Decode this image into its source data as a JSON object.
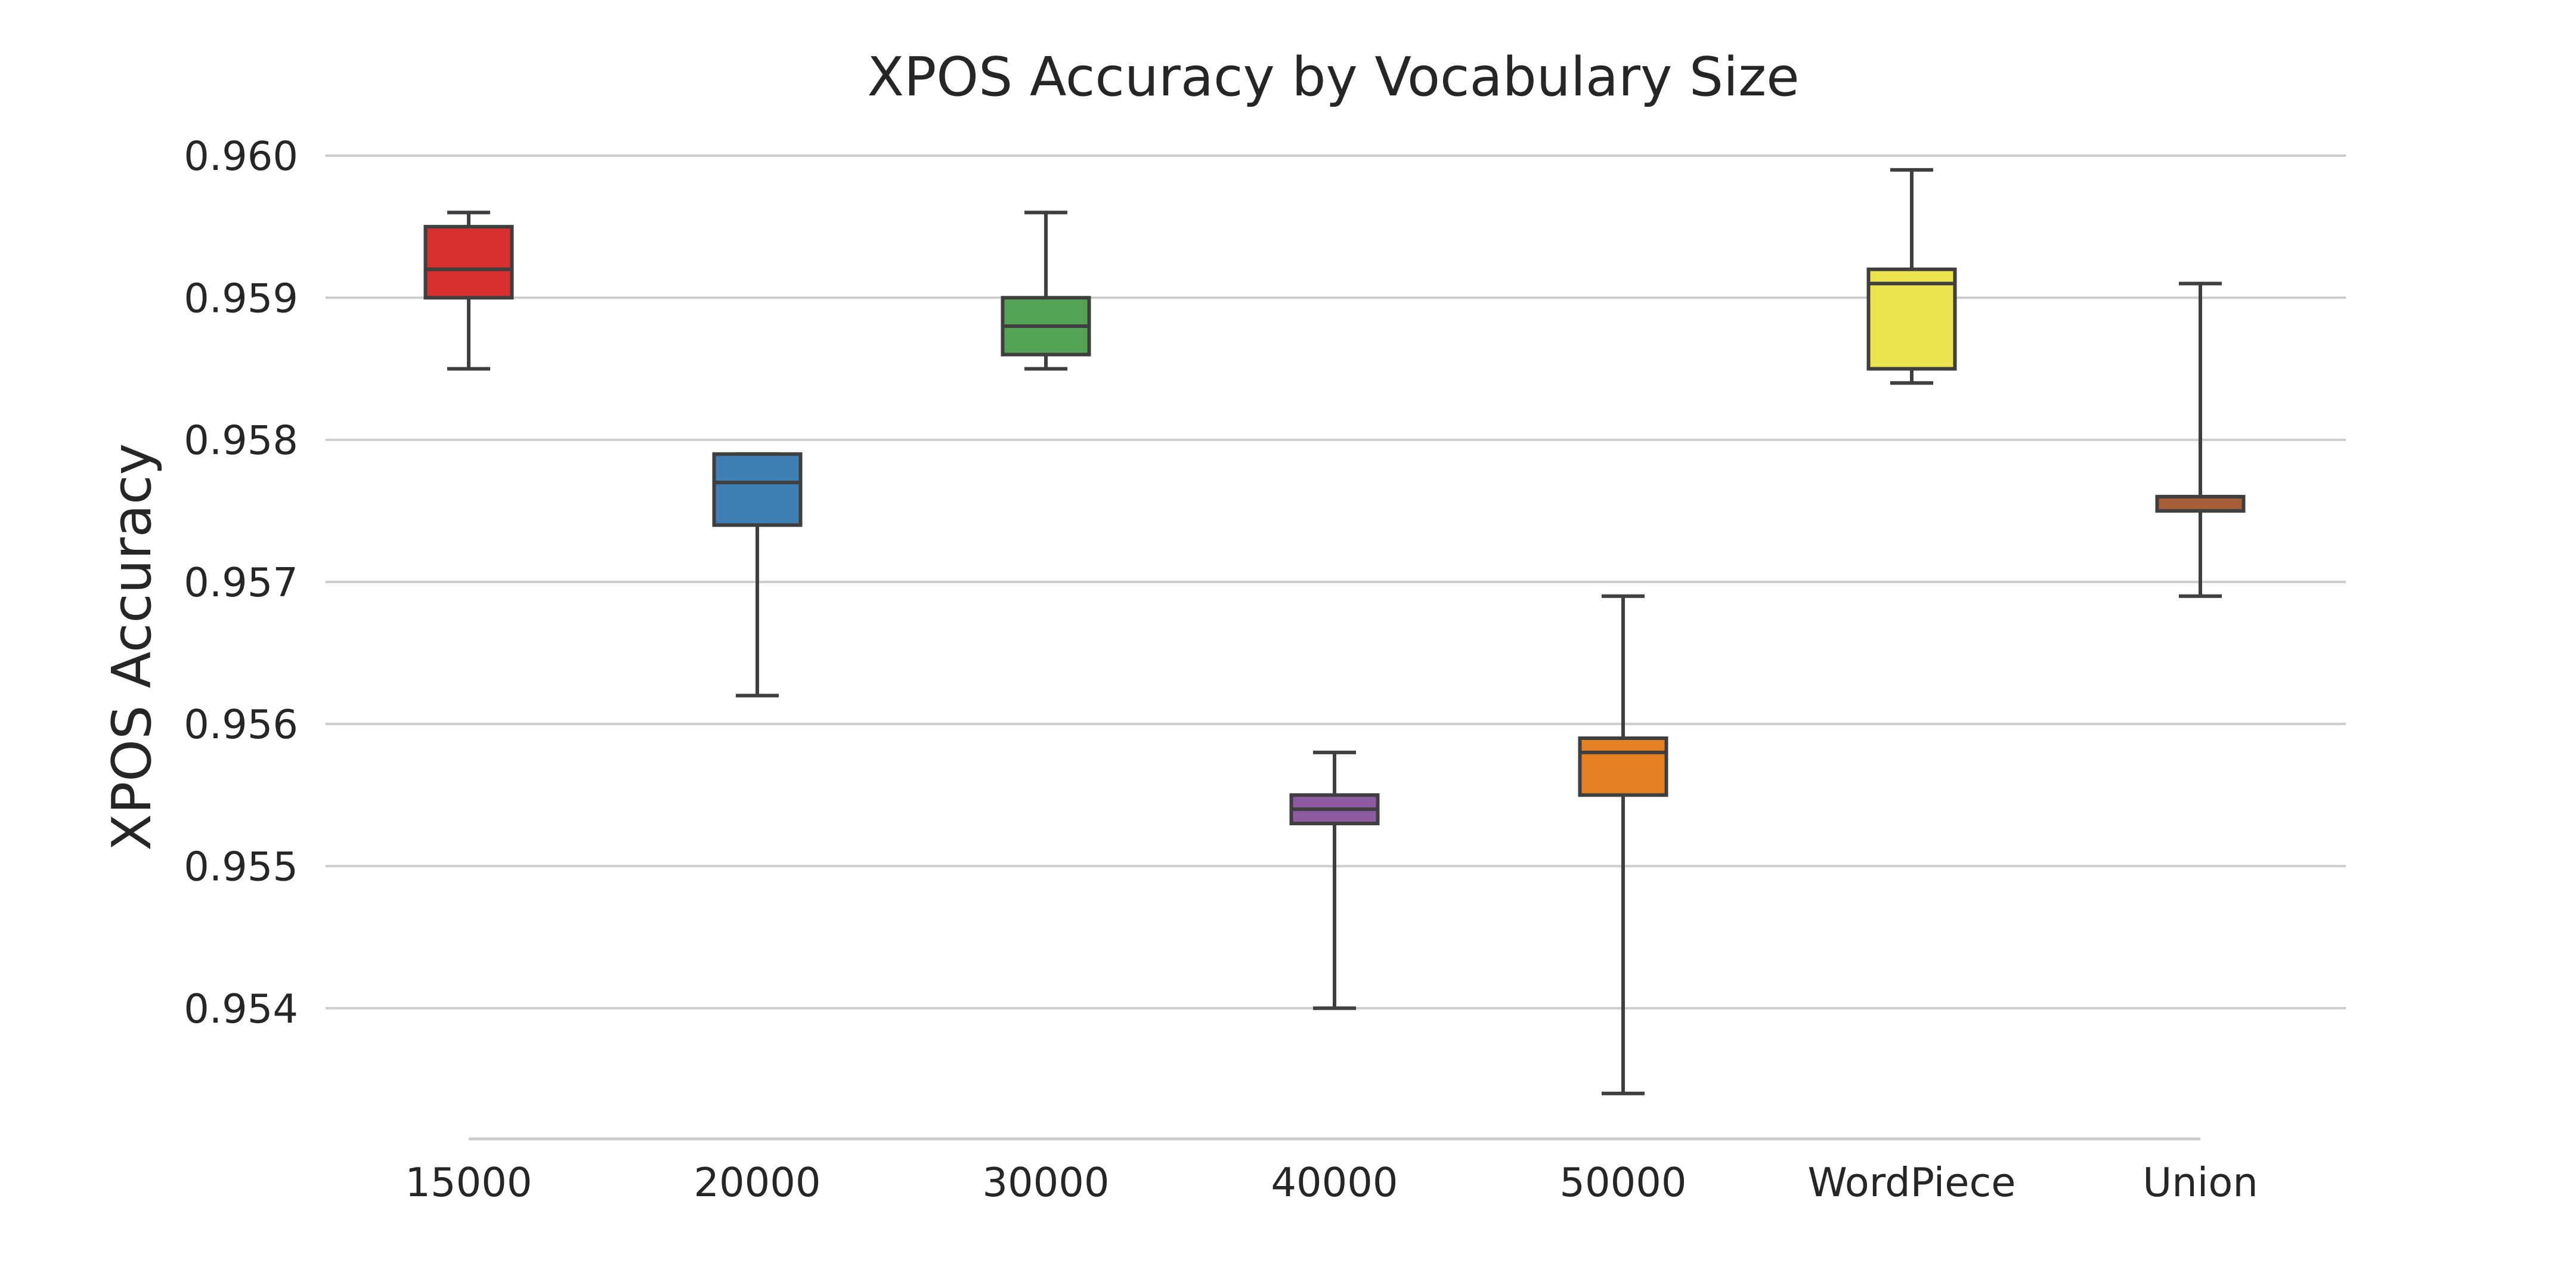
{
  "chart_data": {
    "type": "box",
    "title": "XPOS Accuracy by Vocabulary Size",
    "xlabel": "",
    "ylabel": "XPOS Accuracy",
    "ylim": [
      0.95308,
      0.96034
    ],
    "yticks": [
      0.954,
      0.955,
      0.956,
      0.957,
      0.958,
      0.959,
      0.96
    ],
    "ytick_labels": [
      "0.954",
      "0.955",
      "0.956",
      "0.957",
      "0.958",
      "0.959",
      "0.960"
    ],
    "grid": "horizontal",
    "categories": [
      "15000",
      "20000",
      "30000",
      "40000",
      "50000",
      "WordPiece",
      "Union"
    ],
    "boxes": [
      {
        "category": "15000",
        "whisker_low": 0.9585,
        "q1": 0.959,
        "median": 0.9592,
        "q3": 0.9595,
        "whisker_high": 0.9596,
        "color": "#d62f2f"
      },
      {
        "category": "20000",
        "whisker_low": 0.9562,
        "q1": 0.9574,
        "median": 0.9577,
        "q3": 0.9579,
        "whisker_high": 0.9579,
        "color": "#3f7fb5"
      },
      {
        "category": "30000",
        "whisker_low": 0.9585,
        "q1": 0.9586,
        "median": 0.9588,
        "q3": 0.959,
        "whisker_high": 0.9596,
        "color": "#55a456"
      },
      {
        "category": "40000",
        "whisker_low": 0.954,
        "q1": 0.9553,
        "median": 0.9554,
        "q3": 0.9555,
        "whisker_high": 0.9558,
        "color": "#8e5ba3"
      },
      {
        "category": "50000",
        "whisker_low": 0.9534,
        "q1": 0.9555,
        "median": 0.9558,
        "q3": 0.9559,
        "whisker_high": 0.9569,
        "color": "#e68123"
      },
      {
        "category": "WordPiece",
        "whisker_low": 0.9584,
        "q1": 0.9585,
        "median": 0.9591,
        "q3": 0.9592,
        "whisker_high": 0.9599,
        "color": "#e9e450"
      },
      {
        "category": "Union",
        "whisker_low": 0.9569,
        "q1": 0.9575,
        "median": 0.9576,
        "q3": 0.9576,
        "whisker_high": 0.9591,
        "color": "#a75d35"
      }
    ]
  }
}
